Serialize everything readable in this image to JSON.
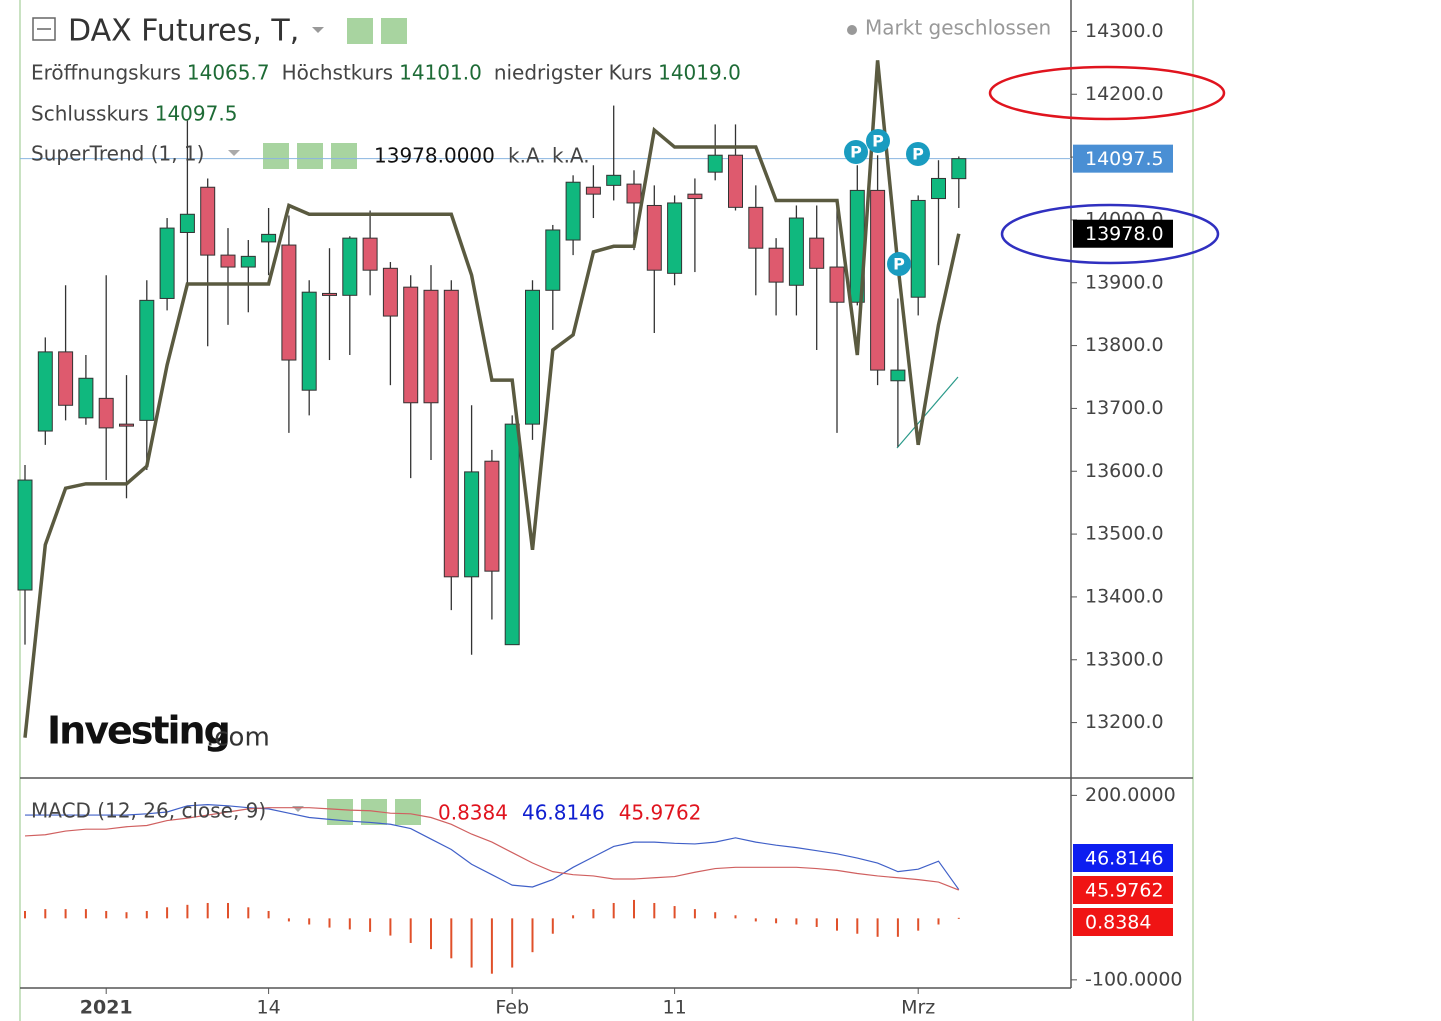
{
  "chart_data": {
    "type": "candlestick",
    "title": "DAX Futures, T,",
    "status": "Markt geschlossen",
    "ohlc_legend": [
      {
        "label": "Eröffnungskurs",
        "value": "14065.7"
      },
      {
        "label": "Höchstkurs",
        "value": "14101.0"
      },
      {
        "label": "niedrigster Kurs",
        "value": "14019.0"
      },
      {
        "label": "Schlusskurs",
        "value": "14097.5"
      }
    ],
    "supertrend_legend": {
      "name": "SuperTrend (1, 1)",
      "value": "13978.0000",
      "extra": "k.A. k.A."
    },
    "macd_legend": {
      "name": "MACD (12, 26, close, 9)",
      "values": [
        {
          "text": "0.8384",
          "color": "#e0141e"
        },
        {
          "text": "46.8146",
          "color": "#1020d0"
        },
        {
          "text": "45.9762",
          "color": "#e0141e"
        }
      ]
    },
    "watermark": [
      "Investing",
      ".com"
    ],
    "categories": [
      null,
      null,
      null,
      null,
      "2021",
      null,
      null,
      null,
      null,
      null,
      null,
      null,
      "14",
      null,
      null,
      null,
      null,
      null,
      null,
      null,
      null,
      null,
      null,
      null,
      "Feb",
      null,
      null,
      null,
      null,
      null,
      null,
      null,
      "11",
      null,
      null,
      null,
      null,
      null,
      null,
      null,
      null,
      null,
      null,
      null,
      "Mrz",
      null,
      null
    ],
    "open": [
      13411,
      13664,
      13790,
      13685,
      13716,
      13675,
      13681,
      13875,
      13980,
      14052,
      13944,
      13925,
      13965,
      13960,
      13729,
      13883,
      13880,
      13971,
      13923,
      13893,
      13888,
      13888,
      13432,
      13616,
      13324,
      13675,
      13888,
      13968,
      14052,
      14055,
      14057,
      14023,
      13915,
      14041,
      14076,
      14103,
      14020,
      13955,
      13896,
      13971,
      13925,
      13869,
      14047,
      13744,
      13877,
      14034,
      14065.7
    ],
    "high": [
      13610,
      13813,
      13896,
      13785,
      13912,
      13753,
      13904,
      14003,
      14158,
      14066,
      13987,
      13968,
      14019,
      14007,
      13904,
      13955,
      13974,
      14015,
      13933,
      13912,
      13928,
      13904,
      13705,
      13634,
      13689,
      13904,
      13992,
      14071,
      14087,
      14182,
      14079,
      14055,
      14039,
      14066,
      14152,
      14152,
      14055,
      13971,
      14023,
      14023,
      14031,
      14087,
      14103,
      13875,
      14039,
      14095,
      14101
    ],
    "low": [
      13324,
      13642,
      13681,
      13674,
      13586,
      13557,
      13602,
      13856,
      13896,
      13799,
      13833,
      13853,
      13912,
      13661,
      13689,
      13777,
      13785,
      13880,
      13737,
      13589,
      13618,
      13379,
      13308,
      13364,
      13324,
      13650,
      13825,
      13944,
      14003,
      14031,
      13952,
      13820,
      13896,
      13917,
      14063,
      14015,
      13880,
      13848,
      13848,
      13793,
      13661,
      13864,
      13737,
      13639,
      13848,
      13928,
      14019
    ],
    "close": [
      13586,
      13790,
      13705,
      13748,
      13669,
      13672,
      13872,
      13987,
      14009,
      13944,
      13925,
      13942,
      13977,
      13777,
      13885,
      13880,
      13971,
      13920,
      13847,
      13709,
      13709,
      13432,
      13599,
      13441,
      13675,
      13888,
      13984,
      14060,
      14041,
      14071,
      14027,
      13920,
      14027,
      14034,
      14103,
      14020,
      13955,
      13901,
      14003,
      13923,
      13869,
      14047,
      13761,
      13761,
      14031,
      14066,
      14097.5
    ],
    "up_color": "#10b87e",
    "down_color": "#de5a6e",
    "supertrend": {
      "color": "#5a5a40",
      "values": [
        13176,
        13483,
        13573,
        13580,
        13580,
        13580,
        13608,
        13769,
        13898,
        13898,
        13898,
        13898,
        13898,
        14023,
        14009,
        14009,
        14009,
        14009,
        14009,
        14009,
        14009,
        14009,
        13912,
        13745,
        13745,
        13475,
        13793,
        13817,
        13949,
        13958,
        13958,
        14143,
        14116,
        14116,
        14116,
        14116,
        14116,
        14031,
        14031,
        14031,
        14031,
        13785,
        14254,
        13928,
        13642,
        13833,
        13978
      ]
    },
    "ylim": [
      13115,
      14350
    ],
    "yticks": [
      {
        "value": 13200,
        "label": "13200.0"
      },
      {
        "value": 13300,
        "label": "13300.0"
      },
      {
        "value": 13400,
        "label": "13400.0"
      },
      {
        "value": 13500,
        "label": "13500.0"
      },
      {
        "value": 13600,
        "label": "13600.0"
      },
      {
        "value": 13700,
        "label": "13700.0"
      },
      {
        "value": 13800,
        "label": "13800.0"
      },
      {
        "value": 13900,
        "label": "13900.0"
      },
      {
        "value": 14000,
        "label": "14000.0"
      },
      {
        "value": 14100,
        "label": "14100.0"
      },
      {
        "value": 14200,
        "label": "14200.0"
      },
      {
        "value": 14300,
        "label": "14300.0"
      }
    ],
    "price_tags": [
      {
        "value": 14097.5,
        "label": "14097.5",
        "color": "#4a8fd4"
      },
      {
        "value": 13978,
        "label": "13978.0",
        "color": "#000000"
      }
    ],
    "macd": {
      "ylim": [
        -110,
        225
      ],
      "yticks": [
        {
          "value": 200,
          "label": "200.0000"
        },
        {
          "value": -100,
          "label": "-100.0000"
        }
      ],
      "series": [
        {
          "name": "MACD",
          "color": "#4060c8",
          "values": [
            168,
            168,
            168,
            168,
            168,
            168,
            170,
            173,
            183,
            185,
            183,
            180,
            178,
            171,
            164,
            161,
            158,
            156,
            153,
            146,
            129,
            112,
            88,
            71,
            54,
            51,
            63,
            83,
            100,
            117,
            124,
            124,
            122,
            121,
            124,
            131,
            124,
            119,
            115,
            110,
            105,
            98,
            90,
            76,
            80,
            93,
            46.8146
          ]
        },
        {
          "name": "Signal",
          "color": "#d06060",
          "values": [
            134,
            136,
            142,
            145,
            145,
            149,
            151,
            159,
            163,
            168,
            173,
            178,
            180,
            180,
            180,
            178,
            176,
            175,
            171,
            170,
            164,
            153,
            137,
            124,
            107,
            90,
            76,
            71,
            69,
            64,
            64,
            66,
            68,
            75,
            81,
            83,
            83,
            83,
            83,
            81,
            78,
            73,
            69,
            66,
            63,
            59,
            45.9762
          ]
        },
        {
          "name": "Histogram",
          "color": "#e0502a",
          "values": [
            12,
            15,
            15,
            15,
            12,
            10,
            12,
            18,
            22,
            25,
            25,
            18,
            12,
            -5,
            -10,
            -15,
            -18,
            -22,
            -28,
            -40,
            -50,
            -65,
            -80,
            -90,
            -80,
            -55,
            -25,
            5,
            15,
            25,
            30,
            25,
            20,
            15,
            10,
            5,
            -5,
            -8,
            -10,
            -14,
            -20,
            -25,
            -30,
            -30,
            -20,
            -10,
            0.8384
          ]
        }
      ],
      "tags": [
        {
          "value": 46.8146,
          "label": "46.8146",
          "color": "#0d1ef0"
        },
        {
          "value": 45.9762,
          "label": "45.9762",
          "color": "#f01414"
        },
        {
          "value": 0.8384,
          "label": "0.8384",
          "color": "#f01414"
        }
      ]
    }
  }
}
